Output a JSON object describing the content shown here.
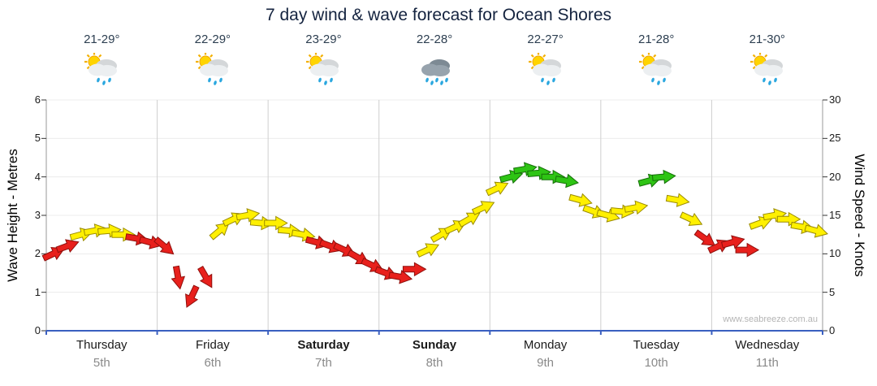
{
  "title": "7 day wind & wave forecast for Ocean Shores",
  "watermark": "www.seabreeze.com.au",
  "days": [
    {
      "name": "Thursday",
      "date": "5th",
      "temp": "21-29°",
      "icon": "sun-shower",
      "bold": false
    },
    {
      "name": "Friday",
      "date": "6th",
      "temp": "22-29°",
      "icon": "sun-shower",
      "bold": false
    },
    {
      "name": "Saturday",
      "date": "7th",
      "temp": "23-29°",
      "icon": "sun-shower",
      "bold": true
    },
    {
      "name": "Sunday",
      "date": "8th",
      "temp": "22-28°",
      "icon": "rain",
      "bold": true
    },
    {
      "name": "Monday",
      "date": "9th",
      "temp": "22-27°",
      "icon": "sun-shower",
      "bold": false
    },
    {
      "name": "Tuesday",
      "date": "10th",
      "temp": "21-28°",
      "icon": "sun-shower",
      "bold": false
    },
    {
      "name": "Wednesday",
      "date": "11th",
      "temp": "21-30°",
      "icon": "sun-shower",
      "bold": false
    }
  ],
  "axes": {
    "left_label": "Wave Height - Metres",
    "right_label": "Wind Speed - Knots",
    "left_ticks": [
      0,
      1,
      2,
      3,
      4,
      5,
      6
    ],
    "right_ticks": [
      0,
      5,
      10,
      15,
      20,
      25,
      30
    ]
  },
  "chart_data": {
    "type": "scatter",
    "subtype": "wind-arrow-series",
    "title": "7 day wind & wave forecast for Ocean Shores",
    "categories": [
      "Thursday 5th",
      "Friday 6th",
      "Saturday 7th",
      "Sunday 8th",
      "Monday 9th",
      "Tuesday 10th",
      "Wednesday 11th"
    ],
    "points_per_day": 8,
    "y_left_range": [
      0,
      6
    ],
    "y_right_range": [
      0,
      30
    ],
    "ylabel_left": "Wave Height - Metres",
    "ylabel_right": "Wind Speed - Knots",
    "grid": "vertical day separators, light horizontal metre lines",
    "axis_color": "#3a5fc0",
    "colors": {
      "r": {
        "fill": "#e8201c",
        "stroke": "#8f0f0c"
      },
      "y": {
        "fill": "#fff000",
        "stroke": "#9a8b00"
      },
      "g": {
        "fill": "#2ec414",
        "stroke": "#156e08"
      }
    },
    "knots": [
      10,
      11,
      12.5,
      13,
      13,
      12.5,
      12,
      11.5,
      11,
      7,
      4.5,
      7,
      13,
      14.5,
      15,
      14,
      14,
      13,
      12.5,
      11.5,
      11,
      10.5,
      9.5,
      8.5,
      7.5,
      7,
      8,
      10.5,
      12.5,
      13.5,
      14.5,
      16,
      18.5,
      20,
      21,
      20.5,
      20,
      19.5,
      17,
      15.5,
      15,
      15.5,
      16,
      19.5,
      20,
      17,
      14.5,
      12,
      11,
      11.5,
      10.5,
      14,
      15,
      14.5,
      13.5,
      13
    ],
    "rot_deg": [
      -25,
      -20,
      -15,
      -10,
      -5,
      0,
      10,
      15,
      40,
      80,
      115,
      60,
      -40,
      -25,
      -10,
      5,
      0,
      5,
      10,
      15,
      20,
      25,
      30,
      25,
      20,
      10,
      0,
      -25,
      -30,
      -25,
      -30,
      -25,
      -25,
      -15,
      -10,
      -5,
      0,
      10,
      15,
      20,
      15,
      5,
      -10,
      -15,
      -5,
      10,
      25,
      35,
      -25,
      -15,
      0,
      -20,
      -10,
      0,
      10,
      15
    ],
    "color": [
      "r",
      "r",
      "y",
      "y",
      "y",
      "y",
      "r",
      "r",
      "r",
      "r",
      "r",
      "r",
      "y",
      "y",
      "y",
      "y",
      "y",
      "y",
      "y",
      "r",
      "r",
      "r",
      "r",
      "r",
      "r",
      "r",
      "r",
      "y",
      "y",
      "y",
      "y",
      "y",
      "y",
      "g",
      "g",
      "g",
      "g",
      "g",
      "y",
      "y",
      "y",
      "y",
      "y",
      "g",
      "g",
      "y",
      "y",
      "r",
      "r",
      "r",
      "r",
      "y",
      "y",
      "y",
      "y",
      "y"
    ]
  }
}
